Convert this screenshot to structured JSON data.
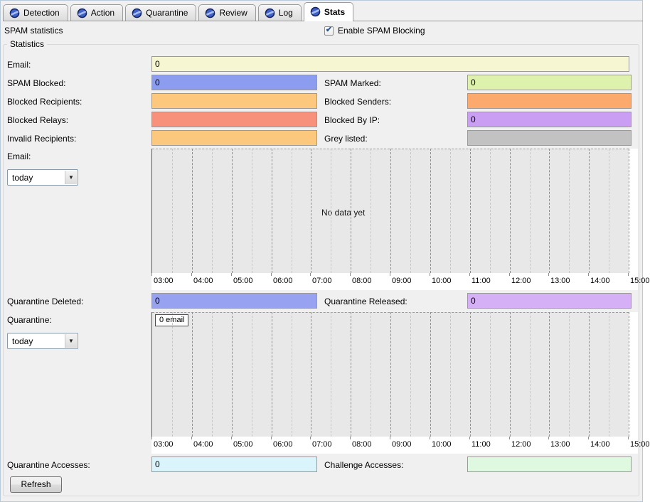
{
  "tabs": {
    "items": [
      {
        "label": "Detection"
      },
      {
        "label": "Action"
      },
      {
        "label": "Quarantine"
      },
      {
        "label": "Review"
      },
      {
        "label": "Log"
      },
      {
        "label": "Stats"
      }
    ],
    "active_index": 5
  },
  "header": {
    "title": "SPAM statistics",
    "enable_label": "Enable SPAM Blocking",
    "enable_checked": true
  },
  "group_legend": "Statistics",
  "fields": {
    "email": {
      "label": "Email:",
      "value": "0",
      "color": "#f6f6d2"
    },
    "spam_blocked": {
      "label": "SPAM Blocked:",
      "value": "0",
      "color": "#8c9cee"
    },
    "spam_marked": {
      "label": "SPAM Marked:",
      "value": "0",
      "color": "#dff2ad"
    },
    "blocked_recipients": {
      "label": "Blocked Recipients:",
      "value": "",
      "color": "#fcc87e"
    },
    "blocked_senders": {
      "label": "Blocked Senders:",
      "value": "",
      "color": "#fba96c"
    },
    "blocked_relays": {
      "label": "Blocked Relays:",
      "value": "",
      "color": "#f7917b"
    },
    "blocked_by_ip": {
      "label": "Blocked By IP:",
      "value": "0",
      "color": "#ca9ff3"
    },
    "invalid_recipients": {
      "label": "Invalid Recipients:",
      "value": "",
      "color": "#fcc87e"
    },
    "grey_listed": {
      "label": "Grey listed:",
      "value": "",
      "color": "#c2c2c2"
    },
    "quarantine_deleted": {
      "label": "Quarantine Deleted:",
      "value": "0",
      "color": "#97a3f0"
    },
    "quarantine_released": {
      "label": "Quarantine Released:",
      "value": "0",
      "color": "#d6b0f6"
    },
    "quarantine_accesses": {
      "label": "Quarantine Accesses:",
      "value": "0",
      "color": "#daf4fb"
    },
    "challenge_accesses": {
      "label": "Challenge Accesses:",
      "value": "",
      "color": "#def9df"
    }
  },
  "sections": {
    "email_chart": {
      "label": "Email:",
      "range_value": "today"
    },
    "quarantine_chart": {
      "label": "Quarantine:",
      "range_value": "today"
    }
  },
  "refresh_label": "Refresh",
  "chart_data": [
    {
      "type": "line",
      "title": "",
      "x_ticks": [
        "03:00",
        "04:00",
        "05:00",
        "06:00",
        "07:00",
        "08:00",
        "09:00",
        "10:00",
        "11:00",
        "12:00",
        "13:00",
        "14:00",
        "15:00"
      ],
      "series": [],
      "annotation": "No data yet",
      "grid": "vertical-dashed, minor half-hour lines, dashed top line",
      "plot_bg": "#e8e8e8",
      "legend_position": "none"
    },
    {
      "type": "line",
      "title": "",
      "x_ticks": [
        "03:00",
        "04:00",
        "05:00",
        "06:00",
        "07:00",
        "08:00",
        "09:00",
        "10:00",
        "11:00",
        "12:00",
        "13:00",
        "14:00",
        "15:00"
      ],
      "series": [
        {
          "name": "0 email",
          "values": []
        }
      ],
      "grid": "vertical-dashed, minor half-hour lines, dashed top line",
      "plot_bg": "#e8e8e8",
      "legend_position": "top-left"
    }
  ]
}
